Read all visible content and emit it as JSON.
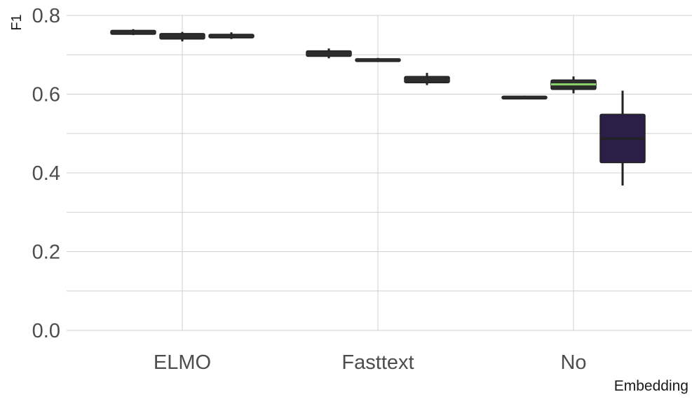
{
  "chart_data": {
    "type": "boxplot",
    "xlabel": "Embedding",
    "ylabel": "F1",
    "ylim": [
      0.0,
      0.8
    ],
    "y_ticks": [
      "0.0",
      "0.2",
      "0.4",
      "0.6",
      "0.8"
    ],
    "categories": [
      "ELMO",
      "Fasttext",
      "No"
    ],
    "grid": true,
    "legend": "none",
    "series": [
      {
        "color": "#2d2d2d",
        "median_color": "#2d2d2d",
        "boxes": [
          {
            "category": "ELMO",
            "min": 0.75,
            "q1": 0.752,
            "median": 0.757,
            "q3": 0.762,
            "max": 0.765
          },
          {
            "category": "Fasttext",
            "min": 0.691,
            "q1": 0.696,
            "median": 0.702,
            "q3": 0.71,
            "max": 0.716
          },
          {
            "category": "No",
            "min": 0.588,
            "q1": 0.589,
            "median": 0.592,
            "q3": 0.595,
            "max": 0.596
          }
        ]
      },
      {
        "color": "#2d2d2d",
        "median_color": "#2d2d2d",
        "boxes": [
          {
            "category": "ELMO",
            "min": 0.734,
            "q1": 0.74,
            "median": 0.746,
            "q3": 0.754,
            "max": 0.758
          },
          {
            "category": "Fasttext",
            "min": 0.683,
            "q1": 0.685,
            "median": 0.688,
            "q3": 0.69,
            "max": 0.692
          },
          {
            "category": "No",
            "min": 0.602,
            "q1": 0.612,
            "median": 0.625,
            "q3": 0.636,
            "max": 0.645
          }
        ]
      },
      {
        "color": "#2d2d2d",
        "median_color": "#2d2d2d",
        "boxes": [
          {
            "category": "ELMO",
            "min": 0.74,
            "q1": 0.743,
            "median": 0.747,
            "q3": 0.752,
            "max": 0.757
          },
          {
            "category": "Fasttext",
            "min": 0.623,
            "q1": 0.629,
            "median": 0.635,
            "q3": 0.645,
            "max": 0.654
          },
          {
            "category": "No",
            "min": 0.368,
            "q1": 0.426,
            "median": 0.487,
            "q3": 0.549,
            "max": 0.609
          }
        ]
      }
    ],
    "box_fill_overrides": {
      "No-1": {
        "fill": "#2d2d2d",
        "median": "#8ad06a"
      },
      "No-2": {
        "fill": "#2b1f47",
        "median": "#222222"
      }
    }
  }
}
